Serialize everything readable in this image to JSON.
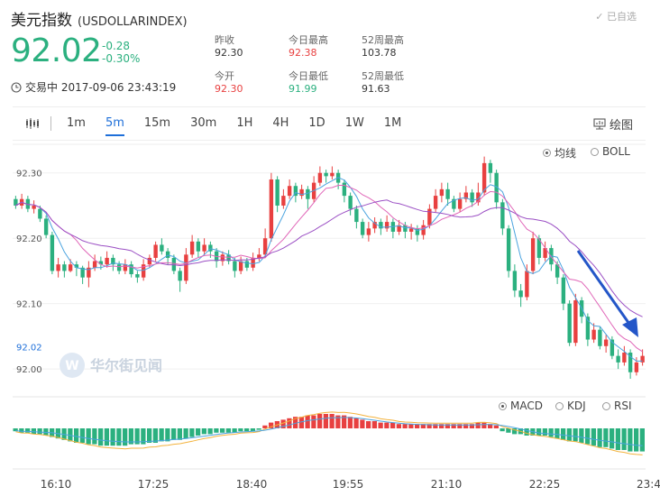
{
  "header": {
    "name": "美元指数",
    "symbol": "(USDOLLARINDEX)",
    "watch_label": "已自选",
    "price": "92.02",
    "change": "-0.28",
    "change_pct": "-0.30%",
    "status": "交易中 2017-09-06 23:43:19"
  },
  "quote": {
    "prev_close_label": "昨收",
    "prev_close": "92.30",
    "open_label": "今开",
    "open": "92.30",
    "high_label": "今日最高",
    "high": "92.38",
    "low_label": "今日最低",
    "low": "91.99",
    "high52_label": "52周最高",
    "high52": "103.78",
    "low52_label": "52周最低",
    "low52": "91.63"
  },
  "toolbar": {
    "periods": [
      "1m",
      "5m",
      "15m",
      "30m",
      "1H",
      "4H",
      "1D",
      "1W",
      "1M"
    ],
    "active_period": "5m",
    "draw_label": "绘图"
  },
  "overlay_options": [
    {
      "label": "均线",
      "selected": true
    },
    {
      "label": "BOLL",
      "selected": false
    }
  ],
  "indicator_options": [
    {
      "label": "MACD",
      "selected": true
    },
    {
      "label": "KDJ",
      "selected": false
    },
    {
      "label": "RSI",
      "selected": false
    }
  ],
  "watermark": "华尔街见闻",
  "colors": {
    "up": "#e84040",
    "down": "#2bb07f",
    "ma_fast": "#4aa3df",
    "ma_mid": "#e066b8",
    "ma_slow": "#9b4fc4",
    "accent": "#1e6fd9",
    "arrow": "#2456c8"
  },
  "chart_data": {
    "type": "candlestick",
    "y_ticks": [
      92.3,
      92.2,
      92.1,
      92.0
    ],
    "y_tick_labels": [
      "92.30",
      "92.20",
      "92.10",
      "92.00"
    ],
    "current_price_label": "92.02",
    "x_tick_labels": [
      "16:10",
      "17:25",
      "18:40",
      "19:55",
      "21:10",
      "22:25",
      "23:4"
    ],
    "ylim": [
      91.985,
      92.33
    ],
    "candles": [
      [
        92.26,
        92.25,
        92.265,
        92.245
      ],
      [
        92.25,
        92.26,
        92.268,
        92.245
      ],
      [
        92.26,
        92.245,
        92.265,
        92.24
      ],
      [
        92.245,
        92.25,
        92.258,
        92.238
      ],
      [
        92.245,
        92.23,
        92.25,
        92.225
      ],
      [
        92.23,
        92.205,
        92.235,
        92.2
      ],
      [
        92.205,
        92.15,
        92.21,
        92.145
      ],
      [
        92.15,
        92.16,
        92.17,
        92.14
      ],
      [
        92.16,
        92.15,
        92.165,
        92.14
      ],
      [
        92.15,
        92.16,
        92.168,
        92.148
      ],
      [
        92.16,
        92.155,
        92.165,
        92.142
      ],
      [
        92.155,
        92.14,
        92.158,
        92.13
      ],
      [
        92.14,
        92.155,
        92.165,
        92.125
      ],
      [
        92.155,
        92.165,
        92.175,
        92.15
      ],
      [
        92.165,
        92.16,
        92.172,
        92.152
      ],
      [
        92.16,
        92.17,
        92.18,
        92.155
      ],
      [
        92.17,
        92.16,
        92.175,
        92.15
      ],
      [
        92.16,
        92.15,
        92.165,
        92.145
      ],
      [
        92.15,
        92.16,
        92.168,
        92.145
      ],
      [
        92.16,
        92.145,
        92.165,
        92.14
      ],
      [
        92.145,
        92.14,
        92.15,
        92.132
      ],
      [
        92.14,
        92.16,
        92.168,
        92.135
      ],
      [
        92.16,
        92.17,
        92.175,
        92.155
      ],
      [
        92.17,
        92.19,
        92.195,
        92.165
      ],
      [
        92.19,
        92.18,
        92.2,
        92.175
      ],
      [
        92.18,
        92.17,
        92.185,
        92.16
      ],
      [
        92.17,
        92.15,
        92.175,
        92.145
      ],
      [
        92.15,
        92.135,
        92.155,
        92.118
      ],
      [
        92.135,
        92.175,
        92.185,
        92.13
      ],
      [
        92.175,
        92.195,
        92.205,
        92.17
      ],
      [
        92.195,
        92.18,
        92.2,
        92.17
      ],
      [
        92.18,
        92.19,
        92.2,
        92.175
      ],
      [
        92.19,
        92.18,
        92.195,
        92.17
      ],
      [
        92.18,
        92.165,
        92.185,
        92.155
      ],
      [
        92.165,
        92.175,
        92.18,
        92.158
      ],
      [
        92.175,
        92.165,
        92.182,
        92.16
      ],
      [
        92.165,
        92.15,
        92.17,
        92.14
      ],
      [
        92.15,
        92.165,
        92.172,
        92.145
      ],
      [
        92.165,
        92.155,
        92.17,
        92.15
      ],
      [
        92.155,
        92.17,
        92.178,
        92.15
      ],
      [
        92.17,
        92.175,
        92.185,
        92.165
      ],
      [
        92.175,
        92.2,
        92.215,
        92.17
      ],
      [
        92.2,
        92.29,
        92.3,
        92.195
      ],
      [
        92.29,
        92.25,
        92.295,
        92.24
      ],
      [
        92.25,
        92.265,
        92.275,
        92.245
      ],
      [
        92.265,
        92.28,
        92.29,
        92.26
      ],
      [
        92.28,
        92.265,
        92.285,
        92.255
      ],
      [
        92.265,
        92.275,
        92.282,
        92.26
      ],
      [
        92.275,
        92.26,
        92.28,
        92.245
      ],
      [
        92.26,
        92.285,
        92.295,
        92.255
      ],
      [
        92.285,
        92.3,
        92.31,
        92.28
      ],
      [
        92.3,
        92.295,
        92.305,
        92.285
      ],
      [
        92.295,
        92.3,
        92.31,
        92.29
      ],
      [
        92.3,
        92.285,
        92.305,
        92.275
      ],
      [
        92.285,
        92.265,
        92.29,
        92.255
      ],
      [
        92.265,
        92.245,
        92.27,
        92.235
      ],
      [
        92.245,
        92.225,
        92.25,
        92.215
      ],
      [
        92.225,
        92.205,
        92.23,
        92.2
      ],
      [
        92.205,
        92.215,
        92.225,
        92.195
      ],
      [
        92.215,
        92.225,
        92.232,
        92.208
      ],
      [
        92.225,
        92.215,
        92.23,
        92.205
      ],
      [
        92.215,
        92.225,
        92.235,
        92.21
      ],
      [
        92.225,
        92.21,
        92.23,
        92.2
      ],
      [
        92.21,
        92.22,
        92.228,
        92.205
      ],
      [
        92.22,
        92.21,
        92.225,
        92.2
      ],
      [
        92.21,
        92.215,
        92.222,
        92.198
      ],
      [
        92.215,
        92.205,
        92.22,
        92.195
      ],
      [
        92.205,
        92.22,
        92.228,
        92.198
      ],
      [
        92.22,
        92.245,
        92.252,
        92.215
      ],
      [
        92.245,
        92.265,
        92.275,
        92.24
      ],
      [
        92.265,
        92.275,
        92.285,
        92.255
      ],
      [
        92.275,
        92.26,
        92.285,
        92.25
      ],
      [
        92.26,
        92.245,
        92.265,
        92.24
      ],
      [
        92.245,
        92.26,
        92.27,
        92.24
      ],
      [
        92.26,
        92.27,
        92.28,
        92.255
      ],
      [
        92.27,
        92.255,
        92.275,
        92.248
      ],
      [
        92.255,
        92.27,
        92.285,
        92.25
      ],
      [
        92.27,
        92.315,
        92.325,
        92.265
      ],
      [
        92.315,
        92.3,
        92.32,
        92.285
      ],
      [
        92.3,
        92.255,
        92.305,
        92.245
      ],
      [
        92.255,
        92.215,
        92.26,
        92.205
      ],
      [
        92.215,
        92.15,
        92.22,
        92.14
      ],
      [
        92.15,
        92.12,
        92.16,
        92.11
      ],
      [
        92.12,
        92.11,
        92.13,
        92.095
      ],
      [
        92.11,
        92.15,
        92.16,
        92.105
      ],
      [
        92.15,
        92.2,
        92.21,
        92.145
      ],
      [
        92.2,
        92.17,
        92.205,
        92.16
      ],
      [
        92.17,
        92.185,
        92.195,
        92.165
      ],
      [
        92.185,
        92.16,
        92.19,
        92.15
      ],
      [
        92.16,
        92.14,
        92.165,
        92.13
      ],
      [
        92.14,
        92.1,
        92.145,
        92.09
      ],
      [
        92.1,
        92.04,
        92.105,
        92.035
      ],
      [
        92.04,
        92.105,
        92.115,
        92.035
      ],
      [
        92.105,
        92.08,
        92.11,
        92.07
      ],
      [
        92.08,
        92.045,
        92.085,
        92.035
      ],
      [
        92.045,
        92.06,
        92.07,
        92.04
      ],
      [
        92.06,
        92.035,
        92.065,
        92.03
      ],
      [
        92.035,
        92.045,
        92.052,
        92.025
      ],
      [
        92.045,
        92.02,
        92.05,
        92.015
      ],
      [
        92.02,
        92.01,
        92.03,
        92.0
      ],
      [
        92.01,
        92.025,
        92.035,
        92.005
      ],
      [
        92.025,
        91.995,
        92.03,
        91.985
      ],
      [
        91.995,
        92.01,
        92.018,
        91.99
      ],
      [
        92.01,
        92.02,
        92.03,
        92.005
      ]
    ],
    "macd_hist": [
      -2,
      -3,
      -3,
      -4,
      -4,
      -5,
      -6,
      -7,
      -8,
      -9,
      -10,
      -10,
      -11,
      -11,
      -12,
      -12,
      -12,
      -12,
      -12,
      -11,
      -11,
      -11,
      -10,
      -10,
      -9,
      -9,
      -8,
      -8,
      -7,
      -6,
      -5,
      -4,
      -4,
      -3,
      -3,
      -3,
      -3,
      -2,
      -2,
      -2,
      -1,
      2,
      4,
      5,
      6,
      7,
      8,
      8,
      9,
      9,
      10,
      10,
      10,
      9,
      9,
      8,
      7,
      6,
      5,
      5,
      4,
      4,
      4,
      3,
      3,
      3,
      3,
      3,
      3,
      3,
      3,
      3,
      3,
      3,
      3,
      3,
      4,
      4,
      3,
      2,
      -2,
      -3,
      -4,
      -4,
      -5,
      -5,
      -5,
      -5,
      -6,
      -7,
      -8,
      -9,
      -9,
      -10,
      -11,
      -12,
      -13,
      -13,
      -14,
      -15,
      -15,
      -16,
      -16,
      -16
    ]
  }
}
